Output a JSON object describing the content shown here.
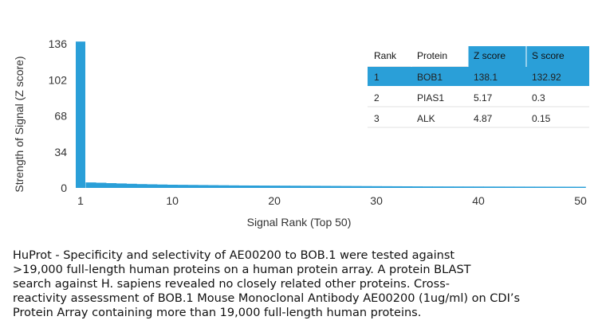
{
  "chart_data": {
    "type": "bar",
    "xlabel": "Signal Rank (Top 50)",
    "ylabel": "Strength of Signal (Z score)",
    "yticks": [
      0,
      34,
      68,
      102,
      136
    ],
    "xticks": [
      1,
      10,
      20,
      30,
      40,
      50
    ],
    "ylim": [
      0,
      136
    ],
    "xlim": [
      1,
      50
    ],
    "grid": false,
    "bar_color": "#2a9fd8",
    "x": [
      1,
      2,
      3,
      4,
      5,
      6,
      7,
      8,
      9,
      10,
      11,
      12,
      13,
      14,
      15,
      16,
      17,
      18,
      19,
      20,
      21,
      22,
      23,
      24,
      25,
      26,
      27,
      28,
      29,
      30,
      31,
      32,
      33,
      34,
      35,
      36,
      37,
      38,
      39,
      40,
      41,
      42,
      43,
      44,
      45,
      46,
      47,
      48,
      49,
      50
    ],
    "values": [
      138.1,
      5.17,
      4.87,
      4.5,
      4.2,
      3.9,
      3.6,
      3.4,
      3.2,
      3.0,
      2.9,
      2.8,
      2.7,
      2.6,
      2.5,
      2.4,
      2.3,
      2.25,
      2.2,
      2.15,
      2.1,
      2.05,
      2.0,
      1.95,
      1.9,
      1.85,
      1.8,
      1.75,
      1.7,
      1.65,
      1.6,
      1.55,
      1.5,
      1.45,
      1.4,
      1.38,
      1.36,
      1.34,
      1.32,
      1.3,
      1.28,
      1.26,
      1.24,
      1.22,
      1.2,
      1.18,
      1.16,
      1.14,
      1.12,
      1.1
    ],
    "table": {
      "headers": [
        "Rank",
        "Protein",
        "Z score",
        "S score"
      ],
      "rows": [
        [
          "1",
          "BOB1",
          "138.1",
          "132.92"
        ],
        [
          "2",
          "PIAS1",
          "5.17",
          "0.3"
        ],
        [
          "3",
          "ALK",
          "4.87",
          "0.15"
        ]
      ],
      "highlight_color": "#2a9fd8"
    }
  },
  "caption": [
    "HuProt  -  Specificity and selectivity of AE00200 to BOB.1 were tested against",
    ">19,000 full-length human proteins on a human protein array. A protein BLAST",
    "search against H. sapiens revealed no closely related other proteins. Cross-",
    "reactivity assessment of BOB.1 Mouse Monoclonal Antibody AE00200 (1ug/ml) on CDI’s",
    "Protein Array containing more than 19,000 full-length human proteins."
  ]
}
